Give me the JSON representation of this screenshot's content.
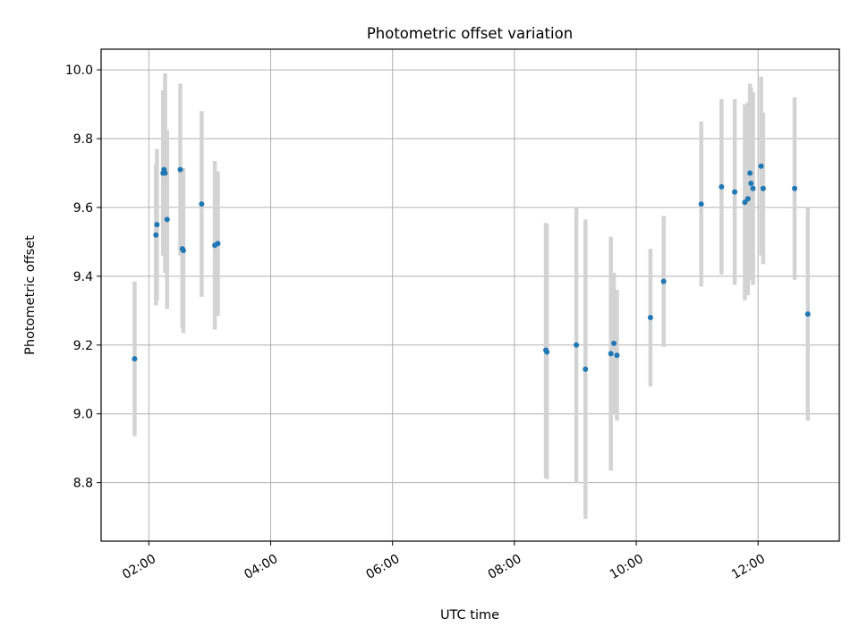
{
  "chart_data": {
    "type": "scatter",
    "title": "Photometric offset variation",
    "xlabel": "UTC time",
    "ylabel": "Photometric offset",
    "x_axis_kind": "time-of-day",
    "xlim": [
      "01:13",
      "13:20"
    ],
    "ylim": [
      8.63,
      10.06
    ],
    "x_ticks": [
      "02:00",
      "04:00",
      "06:00",
      "08:00",
      "10:00",
      "12:00"
    ],
    "y_ticks": [
      "8.8",
      "9.0",
      "9.2",
      "9.4",
      "9.6",
      "9.8",
      "10.0"
    ],
    "grid": true,
    "legend": "none",
    "colors": {
      "points": "#1f77b4",
      "errorbars": "#d3d3d3",
      "grid": "#b0b0b0",
      "axes": "#000000"
    },
    "series": [
      {
        "points": [
          {
            "x": "01:46",
            "y": 9.16,
            "err": 0.225
          },
          {
            "x": "02:07",
            "y": 9.52,
            "err": 0.205
          },
          {
            "x": "02:08",
            "y": 9.55,
            "err": 0.22
          },
          {
            "x": "02:14",
            "y": 9.7,
            "err": 0.24
          },
          {
            "x": "02:15",
            "y": 9.71,
            "err": 0.23
          },
          {
            "x": "02:16",
            "y": 9.7,
            "err": 0.29
          },
          {
            "x": "02:18",
            "y": 9.565,
            "err": 0.26
          },
          {
            "x": "02:31",
            "y": 9.71,
            "err": 0.25
          },
          {
            "x": "02:33",
            "y": 9.48,
            "err": 0.23
          },
          {
            "x": "02:34",
            "y": 9.475,
            "err": 0.24
          },
          {
            "x": "02:52",
            "y": 9.61,
            "err": 0.27
          },
          {
            "x": "03:05",
            "y": 9.49,
            "err": 0.245
          },
          {
            "x": "03:08",
            "y": 9.495,
            "err": 0.21
          },
          {
            "x": "08:31",
            "y": 9.185,
            "err": 0.37
          },
          {
            "x": "08:32",
            "y": 9.18,
            "err": 0.37
          },
          {
            "x": "09:01",
            "y": 9.2,
            "err": 0.4
          },
          {
            "x": "09:10",
            "y": 9.13,
            "err": 0.435
          },
          {
            "x": "09:35",
            "y": 9.175,
            "err": 0.34
          },
          {
            "x": "09:38",
            "y": 9.205,
            "err": 0.205
          },
          {
            "x": "09:41",
            "y": 9.17,
            "err": 0.19
          },
          {
            "x": "10:14",
            "y": 9.28,
            "err": 0.2
          },
          {
            "x": "10:27",
            "y": 9.385,
            "err": 0.19
          },
          {
            "x": "11:04",
            "y": 9.61,
            "err": 0.24
          },
          {
            "x": "11:24",
            "y": 9.66,
            "err": 0.255
          },
          {
            "x": "11:37",
            "y": 9.645,
            "err": 0.27
          },
          {
            "x": "11:47",
            "y": 9.615,
            "err": 0.285
          },
          {
            "x": "11:50",
            "y": 9.625,
            "err": 0.28
          },
          {
            "x": "11:52",
            "y": 9.7,
            "err": 0.26
          },
          {
            "x": "11:53",
            "y": 9.67,
            "err": 0.28
          },
          {
            "x": "11:55",
            "y": 9.655,
            "err": 0.28
          },
          {
            "x": "12:03",
            "y": 9.72,
            "err": 0.26
          },
          {
            "x": "12:05",
            "y": 9.655,
            "err": 0.22
          },
          {
            "x": "12:36",
            "y": 9.655,
            "err": 0.265
          },
          {
            "x": "12:49",
            "y": 9.29,
            "err": 0.31
          }
        ]
      }
    ]
  }
}
